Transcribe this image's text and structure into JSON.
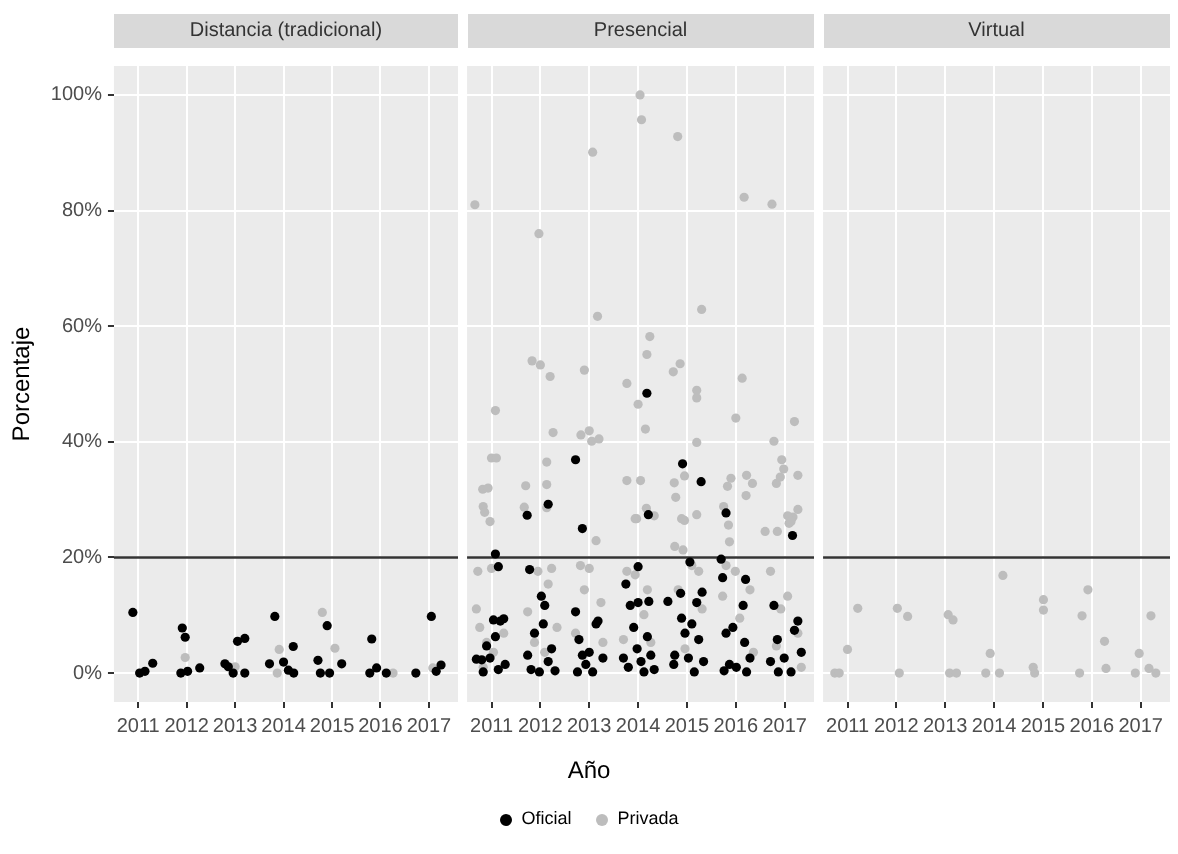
{
  "chart_data": [
    {
      "type": "scatter",
      "title": "Distancia (tradicional)",
      "ylabel": "Porcentaje",
      "legend": "bottom",
      "xlim": [
        2010.5,
        2017.6
      ],
      "xticks": [
        2011,
        2012,
        2013,
        2014,
        2015,
        2016,
        2017
      ],
      "ylim": [
        -5,
        105
      ],
      "yticks": [
        {
          "value": 0,
          "label": "0%"
        },
        {
          "value": 20,
          "label": "20%"
        },
        {
          "value": 40,
          "label": "40%"
        },
        {
          "value": 60,
          "label": "60%"
        },
        {
          "value": 80,
          "label": "80%"
        },
        {
          "value": 100,
          "label": "100%"
        }
      ],
      "grid": true,
      "marker": "circle",
      "ref_lines": [
        {
          "axis": "y",
          "value": 20,
          "color": "#333333"
        }
      ],
      "series": [
        {
          "name": "Oficial",
          "color": "#000000",
          "x": [
            2010.89,
            2011.03,
            2011.14,
            2011.3,
            2011.91,
            2011.97,
            2011.88,
            2012.02,
            2012.27,
            2012.79,
            2012.86,
            2012.96,
            2013.05,
            2013.2,
            2013.2,
            2013.71,
            2013.82,
            2014.0,
            2014.2,
            2014.1,
            2014.21,
            2014.71,
            2014.76,
            2014.9,
            2014.95,
            2015.2,
            2015.82,
            2015.78,
            2015.92,
            2016.12,
            2016.73,
            2017.05,
            2017.15,
            2017.25
          ],
          "values": [
            10.5,
            0,
            0.3,
            1.7,
            7.8,
            6.2,
            0,
            0.3,
            0.9,
            1.6,
            1.1,
            0,
            5.5,
            6,
            0,
            1.6,
            9.8,
            1.9,
            4.6,
            0.5,
            0,
            2.2,
            0,
            8.2,
            0,
            1.6,
            5.9,
            0,
            0.9,
            0,
            0,
            9.8,
            0.3,
            1.4
          ]
        },
        {
          "name": "Privada",
          "color": "#bdbdbd",
          "x": [
            2011.97,
            2013.0,
            2013.91,
            2013.87,
            2014.8,
            2015.06,
            2016.26,
            2017.08
          ],
          "values": [
            2.7,
            1.1,
            4.1,
            0,
            10.5,
            4.3,
            0,
            0.9
          ]
        }
      ]
    },
    {
      "type": "scatter",
      "title": "Presencial",
      "xlabel": "Año",
      "legend": "bottom",
      "tick_labels": "x",
      "xlim": [
        2010.5,
        2017.6
      ],
      "xticks": [
        2011,
        2012,
        2013,
        2014,
        2015,
        2016,
        2017
      ],
      "ylim": [
        -5,
        105
      ],
      "yticks": [
        0,
        20,
        40,
        60,
        80,
        100
      ],
      "grid": true,
      "marker": "circle",
      "ref_lines": [
        {
          "axis": "y",
          "value": 20,
          "color": "#333333"
        }
      ],
      "series": [
        {
          "name": "Oficial",
          "color": "#000000",
          "x": [
            2014.18,
            2012.72,
            2014.91,
            2015.29,
            2012.16,
            2011.73,
            2014.21,
            2015.8,
            2012.86,
            2017.16,
            2011.08,
            2011.14,
            2011.78,
            2014.0,
            2015.06,
            2015.7,
            2016.2,
            2013.75,
            2012.02,
            2015.31,
            2014.0,
            2014.22,
            2014.87,
            2014.61,
            2010.69,
            2010.8,
            2010.97,
            2011.08,
            2011.18,
            2011.25,
            2011.04,
            2011.14,
            2010.83,
            2010.9,
            2011.28,
            2011.81,
            2012.09,
            2011.88,
            2012.23,
            2012.16,
            2011.98,
            2012.3,
            2011.74,
            2012.06,
            2012.72,
            2012.79,
            2012.86,
            2012.93,
            2013.07,
            2013.14,
            2013.18,
            2013.28,
            2013.0,
            2012.76,
            2013.84,
            2013.91,
            2013.7,
            2013.8,
            2014.06,
            2014.19,
            2014.26,
            2014.33,
            2014.12,
            2013.98,
            2014.75,
            2014.73,
            2014.89,
            2014.96,
            2015.03,
            2015.15,
            2015.24,
            2015.34,
            2015.1,
            2015.2,
            2015.73,
            2015.8,
            2015.87,
            2015.94,
            2016.01,
            2016.15,
            2016.18,
            2016.29,
            2016.22,
            2015.76,
            2016.78,
            2016.85,
            2016.99,
            2017.13,
            2017.27,
            2017.34,
            2016.87,
            2017.2,
            2016.71
          ],
          "values": [
            48.4,
            36.9,
            36.2,
            33.1,
            29.2,
            27.3,
            27.4,
            27.7,
            25,
            23.8,
            20.6,
            18.4,
            17.9,
            18.4,
            19.2,
            19.7,
            16.2,
            15.4,
            13.3,
            14,
            12.2,
            12.4,
            13.8,
            12.4,
            2.4,
            2.3,
            2.6,
            6.3,
            9,
            9.4,
            9.2,
            0.6,
            0.2,
            4.7,
            1.5,
            0.6,
            11.7,
            6.9,
            4.2,
            2,
            0.2,
            0.4,
            3.1,
            8.5,
            10.6,
            5.8,
            3.1,
            1.5,
            0.2,
            8.5,
            9,
            2.6,
            3.6,
            0.2,
            11.7,
            7.9,
            2.6,
            1,
            2,
            6.3,
            3.1,
            0.6,
            0.2,
            4.2,
            3.1,
            1.5,
            9.5,
            6.9,
            2.6,
            0.2,
            5.8,
            2,
            8.5,
            12.2,
            16.5,
            6.9,
            1.5,
            7.9,
            1,
            11.7,
            5.3,
            2.6,
            0.2,
            0.4,
            11.7,
            5.8,
            2.6,
            0.2,
            9,
            3.6,
            0.2,
            7.4,
            2
          ]
        },
        {
          "name": "Privada",
          "color": "#bdbdbd",
          "x": [
            2014.04,
            2014.07,
            2014.81,
            2013.07,
            2010.66,
            2016.17,
            2016.74,
            2011.97,
            2013.17,
            2015.3,
            2014.24,
            2014.18,
            2011.83,
            2012.0,
            2012.2,
            2012.9,
            2014.86,
            2014.72,
            2013.77,
            2015.2,
            2015.2,
            2016.13,
            2014.0,
            2011.08,
            2016.0,
            2017.2,
            2014.15,
            2012.26,
            2012.83,
            2013.0,
            2013.05,
            2013.2,
            2015.2,
            2016.78,
            2011.0,
            2011.1,
            2012.13,
            2016.94,
            2016.98,
            2010.82,
            2010.93,
            2011.7,
            2012.13,
            2013.77,
            2014.05,
            2014.74,
            2014.77,
            2014.95,
            2015.83,
            2015.9,
            2016.22,
            2016.34,
            2016.83,
            2016.91,
            2017.27,
            2010.83,
            2010.86,
            2010.97,
            2011.67,
            2012.13,
            2013.97,
            2014.17,
            2014.95,
            2015.2,
            2015.75,
            2015.85,
            2016.21,
            2016.6,
            2017.09,
            2017.17,
            2017.27,
            2016.85,
            2010.69,
            2010.76,
            2010.9,
            2011.04,
            2011.25,
            2010.72,
            2011.0,
            2010.83,
            2011.74,
            2011.95,
            2012.23,
            2011.88,
            2012.34,
            2012.09,
            2012.16,
            2012.82,
            2013.0,
            2013.14,
            2012.9,
            2013.24,
            2012.72,
            2013.28,
            2013.77,
            2013.94,
            2014.19,
            2013.94,
            2014.33,
            2014.12,
            2013.7,
            2014.26,
            2014.75,
            2014.92,
            2015.1,
            2015.24,
            2014.82,
            2015.31,
            2014.96,
            2014.89,
            2015.8,
            2015.99,
            2015.73,
            2016.29,
            2016.08,
            2015.87,
            2016.36,
            2017.06,
            2017.13,
            2016.92,
            2017.06,
            2017.27,
            2016.83,
            2017.34,
            2016.71
          ],
          "values": [
            100,
            95.7,
            92.8,
            90.1,
            81,
            82.3,
            81.1,
            76,
            61.7,
            62.9,
            58.2,
            55.1,
            54,
            53.3,
            51.3,
            52.4,
            53.5,
            52.1,
            50.1,
            48.9,
            47.6,
            51,
            46.5,
            45.4,
            44.1,
            43.5,
            42.2,
            41.6,
            41.2,
            41.9,
            40.1,
            40.5,
            39.9,
            40.1,
            37.2,
            37.2,
            36.5,
            36.9,
            35.3,
            31.8,
            32,
            32.4,
            32.6,
            33.3,
            33.3,
            32.9,
            30.4,
            34.1,
            32.3,
            33.7,
            34.2,
            32.8,
            32.8,
            33.9,
            34.2,
            28.8,
            27.8,
            26.2,
            28.7,
            28.6,
            26.7,
            28.5,
            26.4,
            27.4,
            28.8,
            25.6,
            30.7,
            24.5,
            25.9,
            27,
            28.3,
            24.5,
            11.1,
            7.9,
            5.3,
            3.6,
            6.9,
            17.6,
            18.1,
            1,
            10.6,
            17.6,
            18.1,
            5.3,
            7.9,
            3.6,
            15.4,
            18.6,
            18.1,
            22.9,
            14.4,
            12.2,
            6.9,
            5.3,
            17.6,
            17,
            14.4,
            26.7,
            27.2,
            10.1,
            5.8,
            5.3,
            21.9,
            21.3,
            18.6,
            17.6,
            14.4,
            11.1,
            4.2,
            26.7,
            18.6,
            17.6,
            13.3,
            14.4,
            9.5,
            22.7,
            3.6,
            27.2,
            26.2,
            11.1,
            13.3,
            6.9,
            4.7,
            1,
            17.6
          ]
        }
      ]
    },
    {
      "type": "scatter",
      "title": "Virtual",
      "legend": "bottom",
      "tick_labels": "x",
      "xlim": [
        2010.5,
        2017.6
      ],
      "xticks": [
        2011,
        2012,
        2013,
        2014,
        2015,
        2016,
        2017
      ],
      "ylim": [
        -5,
        105
      ],
      "yticks": [
        0,
        20,
        40,
        60,
        80,
        100
      ],
      "grid": true,
      "marker": "circle",
      "ref_lines": [
        {
          "axis": "y",
          "value": 20,
          "color": "#333333"
        }
      ],
      "series": [
        {
          "name": "Privada",
          "color": "#bdbdbd",
          "x": [
            2010.74,
            2010.83,
            2011.0,
            2011.21,
            2012.02,
            2012.23,
            2012.06,
            2013.06,
            2013.16,
            2013.09,
            2013.23,
            2013.83,
            2013.92,
            2014.11,
            2014.18,
            2014.8,
            2014.83,
            2015.01,
            2015.01,
            2015.75,
            2015.8,
            2015.92,
            2016.26,
            2016.29,
            2016.89,
            2016.97,
            2017.17,
            2017.31,
            2017.21
          ],
          "values": [
            0,
            0,
            4.1,
            11.2,
            11.2,
            9.8,
            0,
            10.1,
            9.2,
            0,
            0,
            0,
            3.4,
            0,
            16.9,
            1,
            0,
            12.7,
            10.9,
            0,
            9.9,
            14.4,
            5.5,
            0.8,
            0,
            3.4,
            0.8,
            0,
            9.9
          ]
        }
      ]
    }
  ]
}
